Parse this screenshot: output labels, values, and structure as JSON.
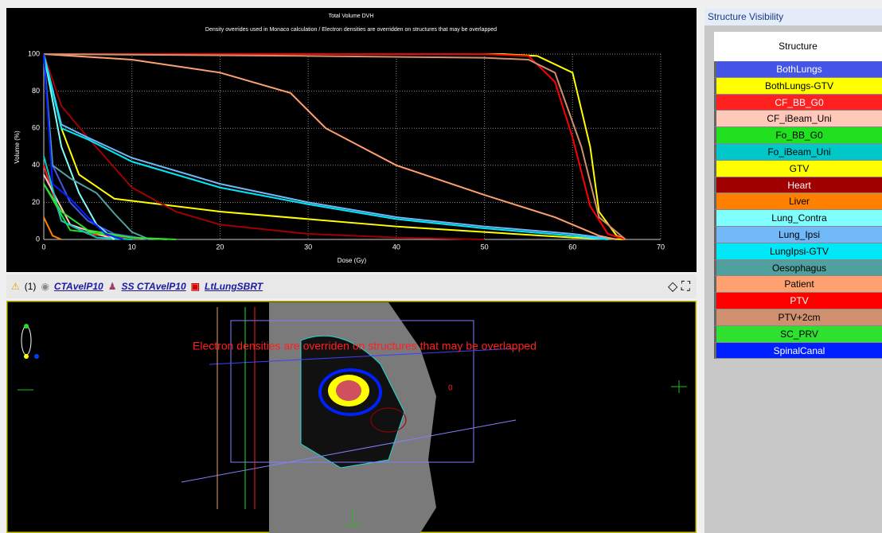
{
  "chart_data": {
    "type": "line",
    "title": "Total Volume DVH",
    "subtitle": "Density overrides used in Monaco calculation / Electron densities are overridden on structures that may be overlapped",
    "x_label": "Dose (Gy)",
    "y_label": "Volume (%)",
    "xlim": [
      0,
      70
    ],
    "xticks": [
      0,
      10,
      20,
      30,
      40,
      50,
      60,
      70
    ],
    "ylim": [
      0,
      100
    ],
    "yticks": [
      0,
      20,
      40,
      60,
      80,
      100
    ],
    "grid": true,
    "series": [
      {
        "name": "BothLungs",
        "color": "#4455e8",
        "x": [
          0,
          1,
          3,
          5,
          8,
          12
        ],
        "values": [
          100,
          40,
          20,
          10,
          3,
          0
        ]
      },
      {
        "name": "BothLungs-GTV",
        "color": "#ffff00",
        "x": [
          0,
          2,
          4,
          8,
          20,
          40,
          60,
          66
        ],
        "values": [
          100,
          60,
          35,
          22,
          15,
          7,
          1,
          0
        ]
      },
      {
        "name": "CF_BB_G0",
        "color": "#ff2020",
        "x": [
          0,
          2,
          5,
          10
        ],
        "values": [
          40,
          10,
          3,
          0
        ]
      },
      {
        "name": "CF_iBeam_Uni",
        "color": "#ffc8b8",
        "x": [
          0,
          3,
          8
        ],
        "values": [
          35,
          8,
          0
        ]
      },
      {
        "name": "Fo_BB_G0",
        "color": "#20e020",
        "x": [
          0,
          3,
          10,
          14
        ],
        "values": [
          30,
          5,
          1,
          0
        ]
      },
      {
        "name": "Fo_iBeam_Uni",
        "color": "#00c8c8",
        "x": [
          0,
          2,
          6,
          10
        ],
        "values": [
          45,
          10,
          1,
          0
        ]
      },
      {
        "name": "GTV",
        "color": "#ffff00",
        "x": [
          0,
          52,
          56,
          60,
          62,
          63,
          65,
          66
        ],
        "values": [
          100,
          100,
          99,
          90,
          50,
          15,
          2,
          0
        ]
      },
      {
        "name": "Heart",
        "color": "#a00000",
        "x": [
          0,
          2,
          5,
          10,
          15,
          20,
          30,
          40,
          50
        ],
        "values": [
          100,
          72,
          55,
          28,
          15,
          8,
          3,
          1,
          0
        ]
      },
      {
        "name": "Liver",
        "color": "#ff8000",
        "x": [
          0,
          1,
          2
        ],
        "values": [
          12,
          2,
          0
        ]
      },
      {
        "name": "Lung_Contra",
        "color": "#80ffff",
        "x": [
          0,
          2,
          4,
          6,
          8
        ],
        "values": [
          100,
          50,
          25,
          8,
          0
        ]
      },
      {
        "name": "Lung_Ipsi",
        "color": "#70b8f8",
        "x": [
          0,
          2,
          5,
          10,
          20,
          30,
          40,
          50,
          60,
          65
        ],
        "values": [
          100,
          62,
          55,
          44,
          30,
          20,
          12,
          7,
          3,
          0
        ]
      },
      {
        "name": "LungIpsi-GTV",
        "color": "#00e8f8",
        "x": [
          0,
          2,
          5,
          10,
          20,
          30,
          40,
          50,
          60,
          64
        ],
        "values": [
          100,
          60,
          54,
          42,
          28,
          19,
          11,
          6,
          2,
          0
        ]
      },
      {
        "name": "Oesophagus",
        "color": "#50a0a0",
        "x": [
          0,
          1,
          3,
          6,
          8,
          10,
          12
        ],
        "values": [
          100,
          40,
          33,
          25,
          14,
          4,
          0
        ]
      },
      {
        "name": "Patient",
        "color": "#ffa070",
        "x": [
          0,
          10,
          20,
          28,
          32,
          40,
          50,
          58,
          63,
          65
        ],
        "values": [
          100,
          97,
          90,
          79,
          60,
          40,
          24,
          12,
          2,
          0
        ]
      },
      {
        "name": "PTV",
        "color": "#ff0000",
        "x": [
          0,
          50,
          55,
          58,
          60,
          62,
          64,
          66
        ],
        "values": [
          100,
          100,
          99,
          85,
          55,
          18,
          3,
          0
        ]
      },
      {
        "name": "PTV+2cm",
        "color": "#d09070",
        "x": [
          0,
          30,
          50,
          55,
          58,
          61,
          63,
          66
        ],
        "values": [
          100,
          99,
          98,
          97,
          90,
          50,
          12,
          0
        ]
      },
      {
        "name": "SC_PRV",
        "color": "#30e030",
        "x": [
          0,
          2,
          5,
          10,
          15
        ],
        "values": [
          30,
          15,
          5,
          1,
          0
        ]
      },
      {
        "name": "SpinalCanal",
        "color": "#0020ff",
        "x": [
          0,
          1,
          3,
          5,
          7,
          9
        ],
        "values": [
          100,
          30,
          22,
          12,
          3,
          0
        ]
      }
    ]
  },
  "toolbar": {
    "count": "(1)",
    "image": "CTAvelP10",
    "structure_set": "SS CTAvelP10",
    "plan": "LtLungSBRT"
  },
  "viewer": {
    "message": "Electron densities are overriden on structures that may be overlapped",
    "marker": "0"
  },
  "panel": {
    "title": "Structure Visibility",
    "column": "Structure"
  }
}
